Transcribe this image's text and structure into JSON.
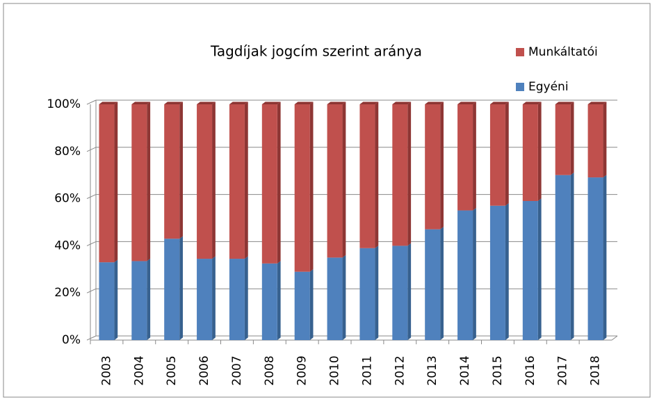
{
  "chart_data": {
    "type": "bar",
    "stacked": true,
    "title": "Tagdíjak jogcím szerint aránya",
    "categories": [
      "2003",
      "2004",
      "2005",
      "2006",
      "2007",
      "2008",
      "2009",
      "2010",
      "2011",
      "2012",
      "2013",
      "2014",
      "2015",
      "2016",
      "2017",
      "2018"
    ],
    "series": [
      {
        "name": "Egyéni",
        "color": "#4f81bd",
        "values": [
          33,
          33.5,
          43,
          34.5,
          34.5,
          32.5,
          29,
          35,
          39,
          40,
          47,
          55,
          57,
          59,
          70,
          69
        ]
      },
      {
        "name": "Munkáltatói",
        "color": "#c0504d",
        "values": [
          67,
          66.5,
          57,
          65.5,
          65.5,
          67.5,
          71,
          65,
          61,
          60,
          53,
          45,
          43,
          41,
          30,
          31
        ]
      }
    ],
    "ylim": [
      0,
      100
    ],
    "yticks": [
      {
        "value": 0,
        "label": "0%"
      },
      {
        "value": 20,
        "label": "20%"
      },
      {
        "value": 40,
        "label": "40%"
      },
      {
        "value": 60,
        "label": "60%"
      },
      {
        "value": 80,
        "label": "80%"
      },
      {
        "value": 100,
        "label": "100%"
      }
    ],
    "grid": true,
    "legend": "top-right"
  }
}
